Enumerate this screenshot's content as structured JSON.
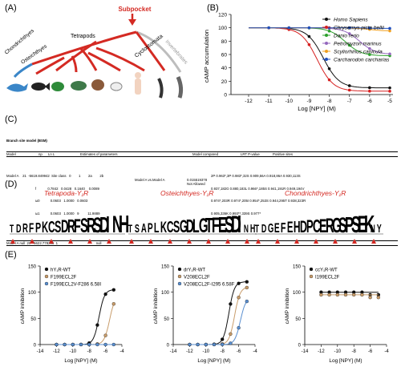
{
  "panels": {
    "A": "(A)",
    "B": "(B)",
    "C": "(C)",
    "D": "(D)",
    "E": "(E)"
  },
  "tree": {
    "subpocket": "Subpocket",
    "chondrichthyes": "Chondrichthyes",
    "osteichthyes": "Osteichthyes",
    "tetrapods": "Tetrapods",
    "cyclostomata": "Cyclostomata",
    "invertebrates": "Invertebrates",
    "colors": {
      "red": "#d42a23",
      "blue": "#3a86c8",
      "gray": "#bdbdbd"
    }
  },
  "panel_b": {
    "chart_data": {
      "type": "line",
      "ylabel": "cAMP accumulation",
      "xlabel": "Log [NPY] (M)",
      "xticks": [
        "-12",
        "-11",
        "-10",
        "-9",
        "-8",
        "-7",
        "-6",
        "-5"
      ],
      "yticks": [
        "0",
        "20",
        "40",
        "60",
        "80",
        "100",
        "120"
      ],
      "ylim": [
        0,
        120
      ],
      "legend": [
        {
          "name": "Homo Sapiens",
          "color": "#111111",
          "marker": "circle"
        },
        {
          "name": "Chrysemys picta bellii",
          "color": "#d62020",
          "marker": "square"
        },
        {
          "name": "Danio rerio",
          "color": "#2ca02c",
          "marker": "triangle"
        },
        {
          "name": "Petromyzon marinus",
          "color": "#9467bd",
          "marker": "triangle-down"
        },
        {
          "name": "Scyliorhinus canicula",
          "color": "#f0a020",
          "marker": "diamond"
        },
        {
          "name": "Carcharodon carcharias",
          "color": "#1f4fbf",
          "marker": "circle"
        }
      ]
    }
  },
  "panel_c": {
    "title": "Branch site model (BSM)",
    "headers": [
      "Model",
      "np",
      "Ln L",
      "Estimates of parameters",
      "Model compared",
      "LRT P-value",
      "Positive sites"
    ],
    "rows": [
      "Model A    21  -5619.849942  Site class   0        1        2a        2b",
      "                              f            0.7842   0.0428   0.1640    0.0089",
      "                              ω0           0.0603   1.0000   0.0603",
      "                              ω1           0.0603   1.0000   9         11.9889",
      "Model A null  20  -5622.778206  1                                        null"
    ],
    "model_compared": "Model A vs.Model A",
    "lrt": "0.015519378",
    "not_allowed": "Not Allowed",
    "sites_lines": [
      "2P 0.963*,3P 0.983*,32S 0.909,56A 0.918,86A 0.930,113S",
      "0.937,182G 0.880,183L 0.966*,185S 0.941,191R 0.949,194V",
      "0.974*,203R 0.974*,205I 0.954*,253S 0.944,295T 0.938,323R",
      "0.905,336K 0.993**,339S 0.977*"
    ]
  },
  "panel_d": {
    "titles": [
      "Tetrapoda-Y₁R",
      "Osteichthyes-Y₁R",
      "Chondrichthyes-Y₁R"
    ]
  },
  "panel_e": {
    "charts": [
      {
        "chart_data": {
          "type": "line",
          "ylabel": "cAMP inhibition",
          "xlabel": "Log [NPY] (M)",
          "xticks": [
            "-14",
            "-12",
            "-10",
            "-8",
            "-6",
            "-4"
          ],
          "yticks": [
            "0",
            "50",
            "100",
            "150"
          ],
          "series": [
            {
              "name": "hY₁R-WT",
              "color": "#111111"
            },
            {
              "name": "F199ECL2F",
              "color": "#c89c6a"
            },
            {
              "name": "F199ECL2V-F286 6.58I",
              "color": "#5a8fd0"
            }
          ]
        }
      },
      {
        "chart_data": {
          "type": "line",
          "ylabel": "cAMP inhibition",
          "xlabel": "Log [NPY] (M)",
          "xticks": [
            "-14",
            "-12",
            "-10",
            "-8",
            "-6",
            "-4"
          ],
          "yticks": [
            "0",
            "50",
            "100",
            "150"
          ],
          "series": [
            {
              "name": "drY₁R-WT",
              "color": "#111111"
            },
            {
              "name": "V208ECL2F",
              "color": "#c89c6a"
            },
            {
              "name": "V208ECL2F-I295 6.58F",
              "color": "#5a8fd0"
            }
          ]
        }
      },
      {
        "chart_data": {
          "type": "line",
          "ylabel": "cAMP inhibition",
          "xlabel": "Log [NPY] (M)",
          "xticks": [
            "-14",
            "-12",
            "-10",
            "-8",
            "-6",
            "-4"
          ],
          "yticks": [
            "0",
            "50",
            "100",
            "150"
          ],
          "series": [
            {
              "name": "ccY₁R-WT",
              "color": "#111111"
            },
            {
              "name": "I199ECL2F",
              "color": "#c89c6a"
            }
          ]
        }
      }
    ]
  }
}
